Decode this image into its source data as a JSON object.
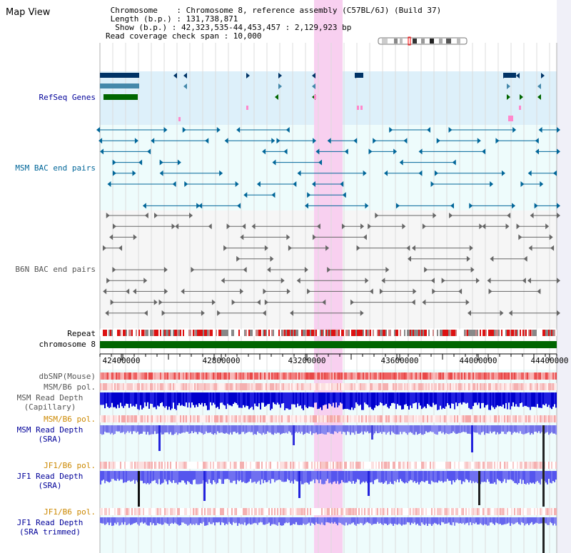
{
  "view": {
    "title": "Map View",
    "header_lines": [
      " Chromosome    : Chromosome 8, reference assembly (C57BL/6J) (Build 37)",
      " Length (b.p.) : 131,738,871",
      "  Show (b.p.) : 42,323,535-44,453,457 : 2,129,923 bp",
      "Read coverage check span : 10,000"
    ]
  },
  "tracks": {
    "refseq": {
      "label": "RefSeq Genes",
      "color": "#000099"
    },
    "msm_bac": {
      "label": "MSM BAC end pairs",
      "color": "#006699"
    },
    "b6n_bac": {
      "label": "B6N BAC end pairs",
      "color": "#555555"
    },
    "repeat": {
      "label": "Repeat"
    },
    "chromosome": {
      "label": "chromosome 8",
      "color": "#006600"
    },
    "dbsnp": {
      "label": "dbSNP(Mouse)",
      "color": "#555555"
    },
    "msm_b6_pol_1": {
      "label": "MSM/B6 pol.",
      "color": "#555555"
    },
    "msm_read_cap": {
      "label": "MSM Read Depth",
      "label2": "(Capillary)",
      "color": "#555555"
    },
    "msm_b6_pol_2": {
      "label": "MSM/B6 pol.",
      "color": "#cc8800"
    },
    "msm_read_sra": {
      "label": "MSM Read Depth",
      "label2": "(SRA)",
      "color": "#000099"
    },
    "jf1_b6_pol_1": {
      "label": "JF1/B6 pol.",
      "color": "#cc8800"
    },
    "jf1_read_sra": {
      "label": "JF1 Read Depth",
      "label2": "(SRA)",
      "color": "#000099"
    },
    "jf1_b6_pol_2": {
      "label": "JF1/B6 pol.",
      "color": "#cc8800"
    },
    "jf1_read_trim": {
      "label": "JF1 Read Depth",
      "label2": "(SRA trimmed)",
      "color": "#000099"
    }
  },
  "axis": {
    "ticks": [
      "42400000",
      "42800000",
      "43200000",
      "43600000",
      "44000000",
      "44400000"
    ]
  },
  "colors": {
    "highlight": "#f8d0f0",
    "refseq_bg": "#ddf0fa",
    "bac_bg": "#eefcfc",
    "chromosome_bar": "#006600",
    "snp_red": "#ee3333",
    "depth_blue": "#1010e0",
    "depth_lightblue": "#7070f0"
  }
}
